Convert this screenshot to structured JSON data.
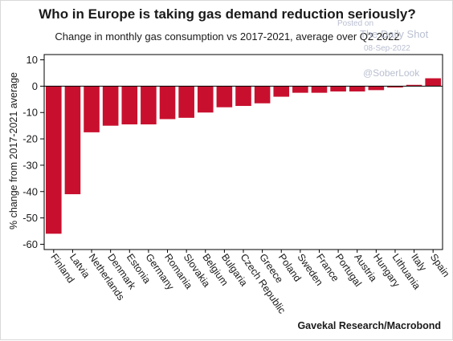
{
  "header": {
    "title": "Who in Europe is taking gas demand reduction seriously?",
    "subtitle": "Change in monthly gas consumption vs 2017-2021, average over Q2 2022"
  },
  "footer": {
    "source": "Gavekal Research/Macrobond"
  },
  "watermark": {
    "posted_on": "Posted on",
    "brand": "The Daily Shot",
    "date": "08-Sep-2022",
    "handle": "@SoberLook"
  },
  "colors": {
    "bar": "#c8102e",
    "axis": "#000000",
    "zero_line": "#000000"
  },
  "chart_data": {
    "type": "bar",
    "ylabel": "% change from 2017-2021 average",
    "xlabel": "",
    "ylim": [
      -62,
      12
    ],
    "yticks": [
      10,
      0,
      -10,
      -20,
      -30,
      -40,
      -50,
      -60
    ],
    "grid": false,
    "categories": [
      "Finland",
      "Latvia",
      "Netherlands",
      "Denmark",
      "Estonia",
      "Germany",
      "Romania",
      "Slovakia",
      "Belgium",
      "Bulgaria",
      "Czech Republic",
      "Greece",
      "Poland",
      "Sweden",
      "France",
      "Portugal",
      "Austria",
      "Hungary",
      "Lithuania",
      "Italy",
      "Spain"
    ],
    "values": [
      -56,
      -41,
      -17.5,
      -15,
      -14.5,
      -14.5,
      -12.5,
      -12,
      -10,
      -8,
      -7.5,
      -6.5,
      -4,
      -2.5,
      -2.5,
      -2,
      -2,
      -1.5,
      -0.5,
      0.5,
      3
    ]
  }
}
